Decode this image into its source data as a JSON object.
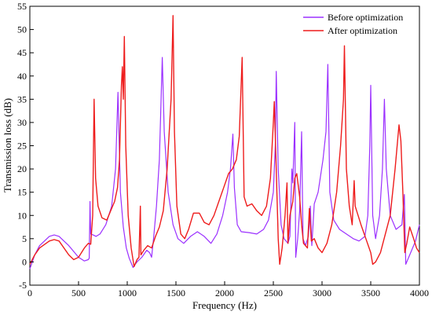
{
  "chart_data": {
    "type": "line",
    "title": "",
    "xlabel": "Frequency (Hz)",
    "ylabel": "Transmission loss (dB)",
    "xlim": [
      0,
      4000
    ],
    "ylim": [
      -5,
      55
    ],
    "x_ticks": [
      0,
      500,
      1000,
      1500,
      2000,
      2500,
      3000,
      3500,
      4000
    ],
    "y_ticks": [
      -5,
      0,
      5,
      10,
      15,
      20,
      25,
      30,
      35,
      40,
      45,
      50,
      55
    ],
    "grid": false,
    "legend_position": "top-right",
    "series": [
      {
        "name": "Before optimization",
        "color": "#9b30ff",
        "points": [
          [
            0,
            -1.5
          ],
          [
            50,
            1.5
          ],
          [
            100,
            3.5
          ],
          [
            200,
            5.5
          ],
          [
            250,
            5.8
          ],
          [
            300,
            5.5
          ],
          [
            400,
            3.5
          ],
          [
            500,
            1.0
          ],
          [
            560,
            0.2
          ],
          [
            600,
            0.5
          ],
          [
            610,
            0.8
          ],
          [
            618,
            13.0
          ],
          [
            625,
            6.0
          ],
          [
            650,
            5.8
          ],
          [
            680,
            5.5
          ],
          [
            720,
            6.0
          ],
          [
            780,
            8.0
          ],
          [
            840,
            12.0
          ],
          [
            880,
            20.0
          ],
          [
            905,
            36.5
          ],
          [
            930,
            15.0
          ],
          [
            960,
            7.5
          ],
          [
            990,
            3.0
          ],
          [
            1020,
            0.8
          ],
          [
            1060,
            -1.2
          ],
          [
            1100,
            0.0
          ],
          [
            1150,
            1.0
          ],
          [
            1200,
            2.5
          ],
          [
            1230,
            2.0
          ],
          [
            1250,
            1.0
          ],
          [
            1270,
            5.0
          ],
          [
            1300,
            12.0
          ],
          [
            1330,
            22.0
          ],
          [
            1360,
            44.0
          ],
          [
            1380,
            28.0
          ],
          [
            1420,
            15.0
          ],
          [
            1470,
            8.0
          ],
          [
            1520,
            5.0
          ],
          [
            1580,
            4.0
          ],
          [
            1650,
            5.5
          ],
          [
            1720,
            6.5
          ],
          [
            1790,
            5.5
          ],
          [
            1860,
            4.0
          ],
          [
            1920,
            6.0
          ],
          [
            1980,
            10.0
          ],
          [
            2030,
            15.0
          ],
          [
            2060,
            20.0
          ],
          [
            2085,
            27.5
          ],
          [
            2100,
            16.0
          ],
          [
            2130,
            8.0
          ],
          [
            2170,
            6.5
          ],
          [
            2250,
            6.3
          ],
          [
            2330,
            6.0
          ],
          [
            2400,
            7.0
          ],
          [
            2450,
            9.0
          ],
          [
            2500,
            15.0
          ],
          [
            2520,
            25.0
          ],
          [
            2530,
            41.0
          ],
          [
            2550,
            20.0
          ],
          [
            2580,
            8.0
          ],
          [
            2610,
            5.0
          ],
          [
            2650,
            4.0
          ],
          [
            2670,
            5.5
          ],
          [
            2690,
            20.0
          ],
          [
            2700,
            17.0
          ],
          [
            2720,
            30.0
          ],
          [
            2730,
            1.0
          ],
          [
            2750,
            5.0
          ],
          [
            2770,
            11.0
          ],
          [
            2790,
            28.0
          ],
          [
            2805,
            5.0
          ],
          [
            2830,
            3.5
          ],
          [
            2860,
            5.5
          ],
          [
            2880,
            12.0
          ],
          [
            2895,
            3.5
          ],
          [
            2920,
            12.5
          ],
          [
            2960,
            15.0
          ],
          [
            3010,
            22.0
          ],
          [
            3040,
            28.0
          ],
          [
            3060,
            42.5
          ],
          [
            3080,
            15.0
          ],
          [
            3120,
            9.0
          ],
          [
            3180,
            7.0
          ],
          [
            3250,
            6.0
          ],
          [
            3320,
            5.0
          ],
          [
            3380,
            4.5
          ],
          [
            3440,
            5.5
          ],
          [
            3470,
            10.0
          ],
          [
            3490,
            25.0
          ],
          [
            3500,
            38.0
          ],
          [
            3520,
            10.0
          ],
          [
            3550,
            5.0
          ],
          [
            3590,
            10.0
          ],
          [
            3620,
            20.0
          ],
          [
            3640,
            35.0
          ],
          [
            3660,
            20.0
          ],
          [
            3700,
            10.0
          ],
          [
            3760,
            7.0
          ],
          [
            3820,
            8.0
          ],
          [
            3845,
            14.5
          ],
          [
            3860,
            -0.5
          ],
          [
            3880,
            0.5
          ],
          [
            3920,
            2.5
          ],
          [
            3960,
            4.5
          ],
          [
            4000,
            8.0
          ]
        ]
      },
      {
        "name": "After optimization",
        "color": "#ee1c1c",
        "points": [
          [
            0,
            -0.5
          ],
          [
            50,
            1.5
          ],
          [
            100,
            3.0
          ],
          [
            200,
            4.5
          ],
          [
            250,
            4.8
          ],
          [
            300,
            4.5
          ],
          [
            400,
            1.5
          ],
          [
            450,
            0.5
          ],
          [
            500,
            1.0
          ],
          [
            560,
            3.0
          ],
          [
            600,
            4.0
          ],
          [
            625,
            3.8
          ],
          [
            645,
            10.0
          ],
          [
            660,
            35.0
          ],
          [
            675,
            18.0
          ],
          [
            700,
            12.0
          ],
          [
            740,
            9.5
          ],
          [
            790,
            9.0
          ],
          [
            830,
            11.0
          ],
          [
            870,
            13.0
          ],
          [
            900,
            16.0
          ],
          [
            920,
            22.0
          ],
          [
            940,
            38.0
          ],
          [
            950,
            42.0
          ],
          [
            960,
            35.0
          ],
          [
            970,
            48.5
          ],
          [
            985,
            25.0
          ],
          [
            1010,
            10.0
          ],
          [
            1040,
            3.0
          ],
          [
            1070,
            -1.0
          ],
          [
            1100,
            0.5
          ],
          [
            1120,
            1.0
          ],
          [
            1135,
            12.0
          ],
          [
            1140,
            1.5
          ],
          [
            1170,
            2.5
          ],
          [
            1210,
            3.5
          ],
          [
            1250,
            3.0
          ],
          [
            1290,
            5.5
          ],
          [
            1330,
            7.5
          ],
          [
            1370,
            11.0
          ],
          [
            1410,
            20.0
          ],
          [
            1450,
            35.0
          ],
          [
            1470,
            53.0
          ],
          [
            1485,
            28.0
          ],
          [
            1510,
            12.0
          ],
          [
            1550,
            6.0
          ],
          [
            1590,
            5.0
          ],
          [
            1630,
            7.0
          ],
          [
            1680,
            10.5
          ],
          [
            1740,
            10.5
          ],
          [
            1790,
            8.5
          ],
          [
            1840,
            8.0
          ],
          [
            1890,
            10.0
          ],
          [
            1940,
            13.0
          ],
          [
            1990,
            16.0
          ],
          [
            2040,
            19.0
          ],
          [
            2080,
            20.0
          ],
          [
            2100,
            21.0
          ],
          [
            2120,
            22.0
          ],
          [
            2150,
            27.0
          ],
          [
            2180,
            44.0
          ],
          [
            2200,
            14.0
          ],
          [
            2230,
            12.0
          ],
          [
            2280,
            12.5
          ],
          [
            2330,
            11.0
          ],
          [
            2380,
            10.0
          ],
          [
            2430,
            12.0
          ],
          [
            2470,
            18.0
          ],
          [
            2500,
            30.0
          ],
          [
            2510,
            34.5
          ],
          [
            2530,
            20.0
          ],
          [
            2550,
            5.0
          ],
          [
            2565,
            -0.5
          ],
          [
            2590,
            3.0
          ],
          [
            2620,
            10.0
          ],
          [
            2640,
            17.0
          ],
          [
            2650,
            4.0
          ],
          [
            2670,
            10.0
          ],
          [
            2700,
            13.0
          ],
          [
            2720,
            18.0
          ],
          [
            2740,
            19.0
          ],
          [
            2770,
            14.0
          ],
          [
            2790,
            8.0
          ],
          [
            2810,
            4.0
          ],
          [
            2830,
            3.5
          ],
          [
            2850,
            3.0
          ],
          [
            2870,
            11.5
          ],
          [
            2890,
            4.5
          ],
          [
            2920,
            5.0
          ],
          [
            2960,
            3.0
          ],
          [
            3000,
            2.0
          ],
          [
            3050,
            4.0
          ],
          [
            3100,
            8.0
          ],
          [
            3150,
            15.0
          ],
          [
            3190,
            25.0
          ],
          [
            3220,
            35.0
          ],
          [
            3230,
            46.5
          ],
          [
            3250,
            20.0
          ],
          [
            3280,
            12.0
          ],
          [
            3310,
            8.0
          ],
          [
            3330,
            17.5
          ],
          [
            3340,
            12.0
          ],
          [
            3400,
            8.0
          ],
          [
            3450,
            5.0
          ],
          [
            3500,
            2.0
          ],
          [
            3520,
            -0.5
          ],
          [
            3550,
            0.0
          ],
          [
            3600,
            2.0
          ],
          [
            3650,
            6.0
          ],
          [
            3700,
            10.0
          ],
          [
            3750,
            20.0
          ],
          [
            3790,
            29.5
          ],
          [
            3810,
            26.0
          ],
          [
            3830,
            15.0
          ],
          [
            3850,
            2.0
          ],
          [
            3870,
            4.0
          ],
          [
            3900,
            7.5
          ],
          [
            3940,
            5.0
          ],
          [
            3970,
            3.0
          ],
          [
            4000,
            2.0
          ]
        ]
      }
    ]
  }
}
